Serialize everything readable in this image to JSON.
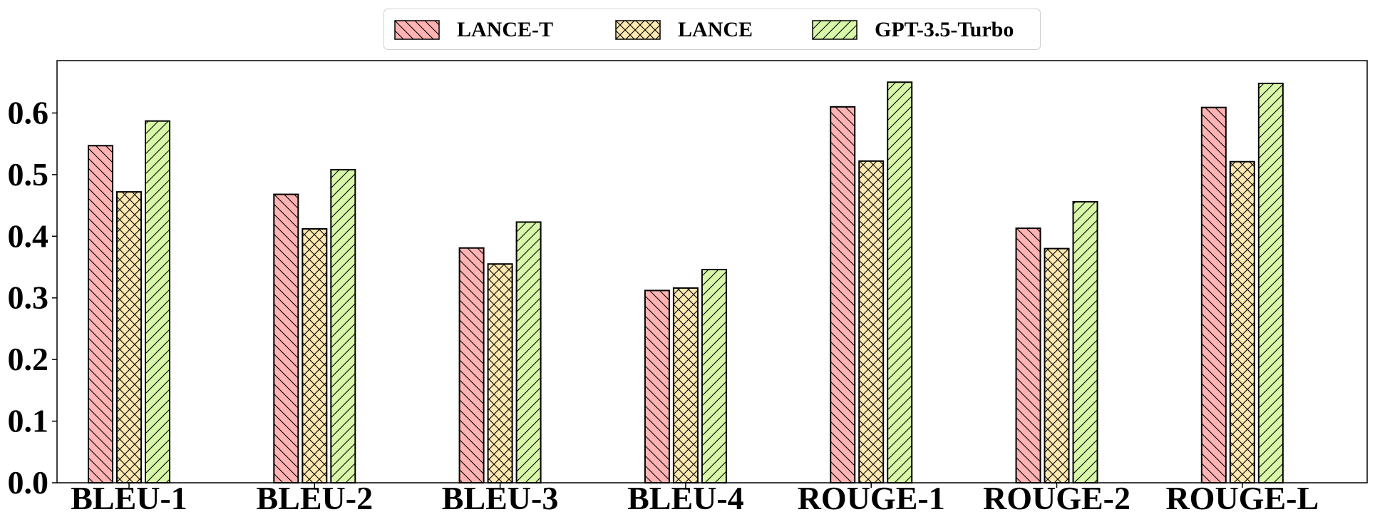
{
  "chart_data": {
    "type": "bar",
    "categories": [
      "BLEU-1",
      "BLEU-2",
      "BLEU-3",
      "BLEU-4",
      "ROUGE-1",
      "ROUGE-2",
      "ROUGE-L"
    ],
    "series": [
      {
        "name": "LANCE-T",
        "color": "#ffb3b3",
        "hatch": "back-diagonal",
        "values": [
          0.547,
          0.468,
          0.381,
          0.312,
          0.61,
          0.413,
          0.609
        ]
      },
      {
        "name": "LANCE",
        "color": "#ffe9b0",
        "hatch": "cross",
        "values": [
          0.472,
          0.412,
          0.355,
          0.316,
          0.522,
          0.38,
          0.521
        ]
      },
      {
        "name": "GPT-3.5-Turbo",
        "color": "#d8f7a8",
        "hatch": "forward-diagonal",
        "values": [
          0.587,
          0.508,
          0.423,
          0.346,
          0.65,
          0.456,
          0.648
        ]
      }
    ],
    "yticks": [
      "0.0",
      "0.1",
      "0.2",
      "0.3",
      "0.4",
      "0.5",
      "0.6"
    ],
    "ylim": [
      0,
      0.685
    ],
    "title": "",
    "xlabel": "",
    "ylabel": "",
    "legend": "top-center",
    "grid": false
  }
}
